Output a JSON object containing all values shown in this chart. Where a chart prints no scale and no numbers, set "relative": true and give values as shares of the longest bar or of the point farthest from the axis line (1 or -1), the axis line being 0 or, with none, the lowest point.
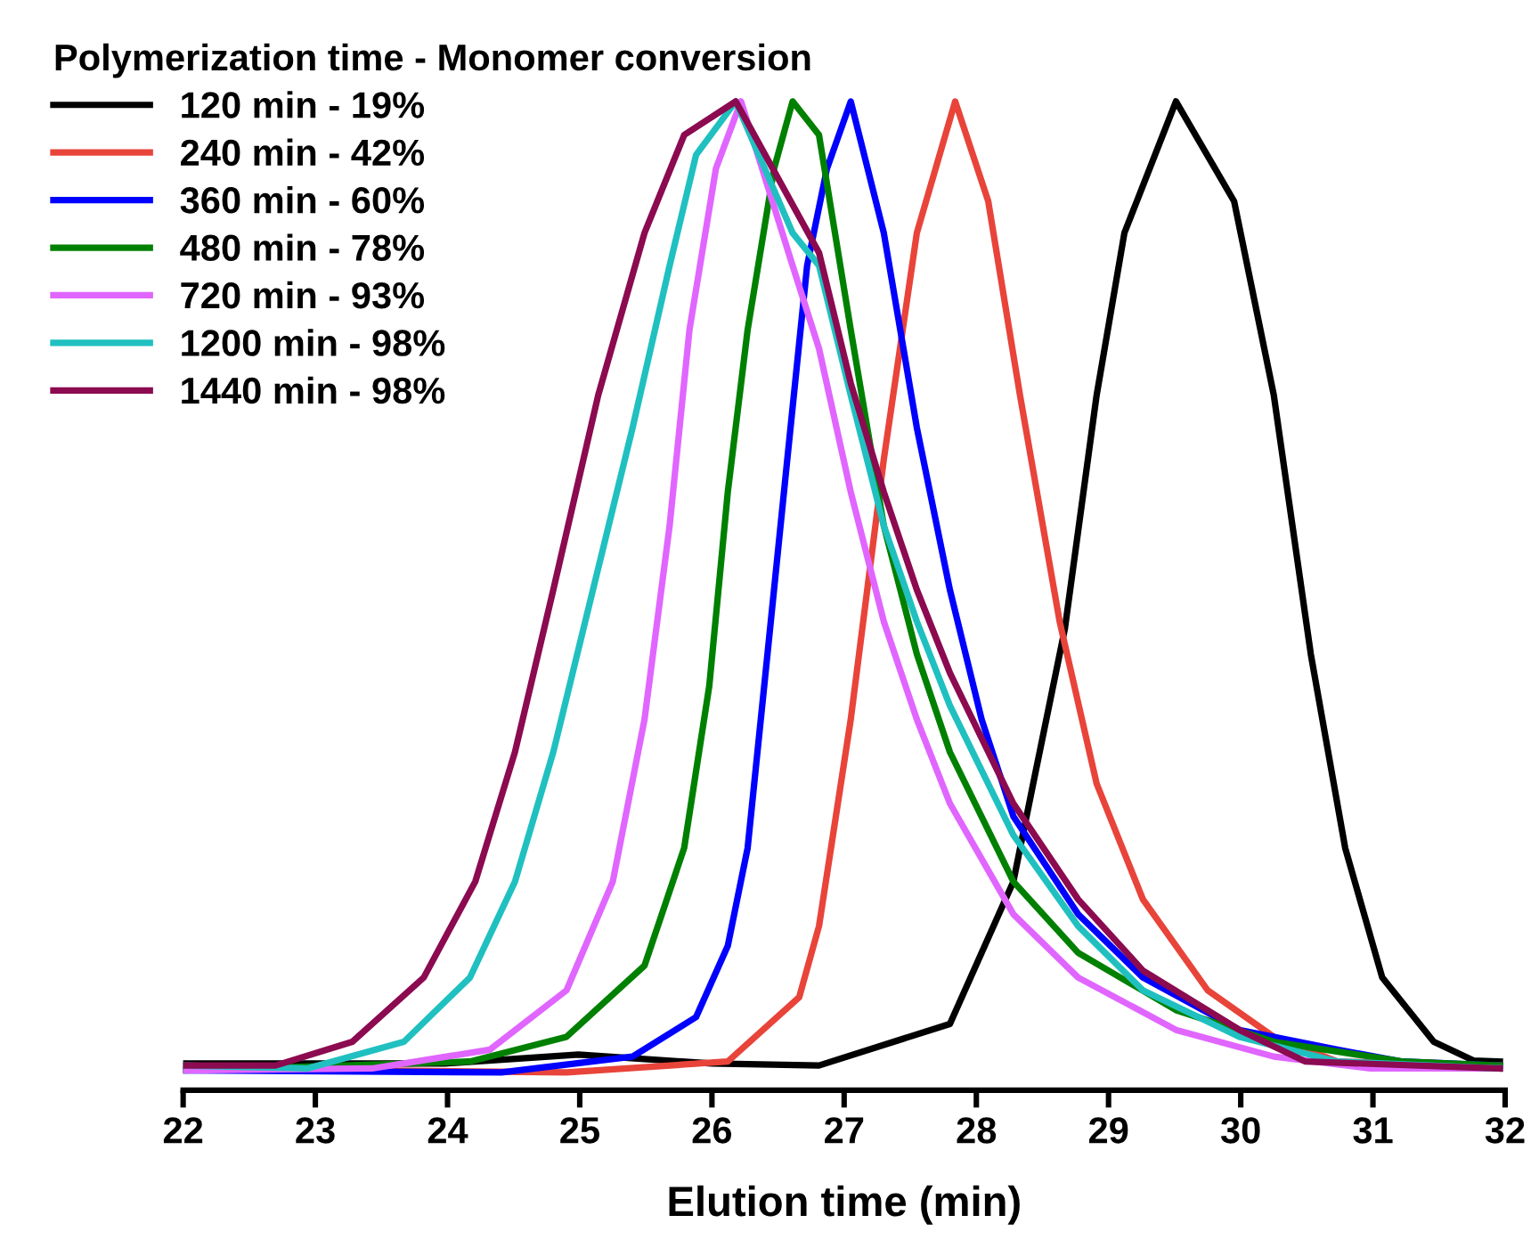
{
  "chart_data": {
    "type": "line",
    "relative": true,
    "xlabel": "Elution time (min)",
    "legend_title": "Polymerization time - Monomer conversion",
    "legend": "top left",
    "grid": false,
    "marker": "none",
    "line_style": "solid",
    "xlim": [
      22,
      32
    ],
    "xticks": [
      22,
      23,
      24,
      25,
      26,
      27,
      28,
      29,
      30,
      31,
      32
    ],
    "series": [
      {
        "name": "120 min - 19%",
        "color": "#000000",
        "x": [
          22.0,
          23.98,
          24.99,
          26.0,
          26.81,
          27.8,
          28.28,
          28.43,
          28.67,
          28.91,
          29.12,
          29.51,
          29.95,
          30.25,
          30.53,
          30.79,
          31.07,
          31.46,
          31.76,
          31.96
        ],
        "values": [
          0.027,
          0.027,
          0.036,
          0.027,
          0.025,
          0.067,
          0.211,
          0.31,
          0.467,
          0.703,
          0.867,
          1.0,
          0.899,
          0.703,
          0.441,
          0.245,
          0.114,
          0.049,
          0.03,
          0.029
        ]
      },
      {
        "name": "240 min - 42%",
        "color": "#e8443a",
        "x": [
          22.0,
          24.9,
          26.12,
          26.66,
          26.81,
          27.05,
          27.3,
          27.55,
          27.84,
          28.09,
          28.33,
          28.63,
          28.91,
          29.26,
          29.75,
          30.25,
          30.73,
          31.96
        ],
        "values": [
          0.022,
          0.018,
          0.029,
          0.094,
          0.166,
          0.375,
          0.638,
          0.867,
          1.0,
          0.899,
          0.703,
          0.474,
          0.31,
          0.193,
          0.101,
          0.054,
          0.029,
          0.025
        ]
      },
      {
        "name": "360 min - 60%",
        "color": "#0000ff",
        "x": [
          22.0,
          24.41,
          25.4,
          25.88,
          26.12,
          26.27,
          26.42,
          26.57,
          26.72,
          26.87,
          27.05,
          27.3,
          27.55,
          27.8,
          28.04,
          28.28,
          28.77,
          29.26,
          29.99,
          30.73,
          31.22,
          31.96
        ],
        "values": [
          0.02,
          0.018,
          0.034,
          0.074,
          0.146,
          0.245,
          0.441,
          0.638,
          0.834,
          0.932,
          1.0,
          0.867,
          0.67,
          0.506,
          0.375,
          0.277,
          0.178,
          0.114,
          0.061,
          0.041,
          0.029,
          0.025
        ]
      },
      {
        "name": "480 min - 78%",
        "color": "#008000",
        "x": [
          22.0,
          24.17,
          24.9,
          25.49,
          25.79,
          25.98,
          26.12,
          26.27,
          26.47,
          26.61,
          26.81,
          27.05,
          27.3,
          27.55,
          27.8,
          28.28,
          28.77,
          29.51,
          30.25,
          31.22,
          31.96
        ],
        "values": [
          0.02,
          0.029,
          0.054,
          0.126,
          0.245,
          0.409,
          0.605,
          0.769,
          0.932,
          1.0,
          0.966,
          0.769,
          0.571,
          0.441,
          0.342,
          0.211,
          0.139,
          0.081,
          0.049,
          0.029,
          0.025
        ]
      },
      {
        "name": "720 min - 93%",
        "color": "#e066ff",
        "x": [
          22.0,
          23.43,
          24.32,
          24.9,
          25.25,
          25.49,
          25.68,
          25.83,
          26.03,
          26.22,
          26.61,
          26.81,
          27.05,
          27.3,
          27.55,
          27.8,
          28.28,
          28.77,
          29.51,
          30.25,
          30.98,
          31.96
        ],
        "values": [
          0.02,
          0.022,
          0.041,
          0.101,
          0.211,
          0.375,
          0.571,
          0.769,
          0.932,
          1.0,
          0.834,
          0.75,
          0.605,
          0.474,
          0.375,
          0.29,
          0.178,
          0.114,
          0.061,
          0.034,
          0.022,
          0.022
        ]
      },
      {
        "name": "1200 min - 98%",
        "color": "#20c0c0",
        "x": [
          22.0,
          22.94,
          23.67,
          24.17,
          24.51,
          24.8,
          25.1,
          25.4,
          25.68,
          25.88,
          26.18,
          26.61,
          26.81,
          27.05,
          27.3,
          27.55,
          27.8,
          28.28,
          28.77,
          29.26,
          29.99,
          30.73,
          31.96
        ],
        "values": [
          0.025,
          0.022,
          0.049,
          0.114,
          0.211,
          0.342,
          0.506,
          0.67,
          0.834,
          0.946,
          1.0,
          0.867,
          0.834,
          0.703,
          0.571,
          0.474,
          0.389,
          0.258,
          0.166,
          0.101,
          0.054,
          0.029,
          0.022
        ]
      },
      {
        "name": "1440 min - 98%",
        "color": "#8b0a50",
        "x": [
          22.0,
          22.7,
          23.28,
          23.82,
          24.21,
          24.51,
          24.8,
          25.14,
          25.49,
          25.79,
          26.18,
          26.81,
          27.05,
          27.3,
          27.55,
          27.8,
          28.28,
          28.77,
          29.26,
          29.99,
          30.49,
          31.96
        ],
        "values": [
          0.025,
          0.025,
          0.049,
          0.114,
          0.211,
          0.342,
          0.506,
          0.703,
          0.867,
          0.966,
          1.0,
          0.847,
          0.715,
          0.605,
          0.506,
          0.422,
          0.29,
          0.193,
          0.121,
          0.061,
          0.029,
          0.022
        ]
      }
    ]
  }
}
